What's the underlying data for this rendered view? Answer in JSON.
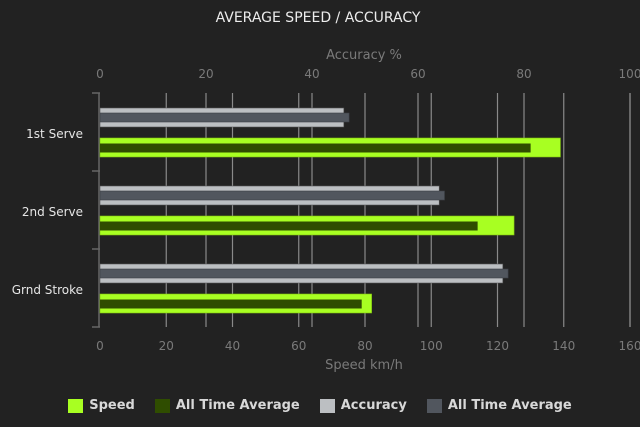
{
  "chart_data": {
    "type": "bar",
    "orientation": "horizontal",
    "title": "AVERAGE SPEED / ACCURACY",
    "categories": [
      "1st Serve",
      "2nd Serve",
      "Grnd Stroke"
    ],
    "top_axis": {
      "label": "Accuracy %",
      "range": [
        0,
        100
      ],
      "ticks": [
        "0",
        "20",
        "40",
        "60",
        "80",
        "100"
      ]
    },
    "bottom_axis": {
      "label": "Speed km/h",
      "range": [
        0,
        160
      ],
      "ticks": [
        "0",
        "20",
        "40",
        "60",
        "80",
        "100",
        "120",
        "140",
        "160"
      ]
    },
    "grid": true,
    "legend_position": "bottom",
    "series": [
      {
        "name": "Speed",
        "axis": "bottom",
        "color": "#a8ff22",
        "values": [
          139,
          125,
          82
        ]
      },
      {
        "name": "All Time Average",
        "axis": "bottom",
        "color": "#2f4d00",
        "values": [
          130,
          114,
          79
        ]
      },
      {
        "name": "Accuracy",
        "axis": "top",
        "color": "#bcbfc2",
        "values": [
          46,
          64,
          76
        ]
      },
      {
        "name": "All Time Average",
        "axis": "top",
        "color": "#51565e",
        "values": [
          47,
          65,
          77
        ]
      }
    ]
  }
}
